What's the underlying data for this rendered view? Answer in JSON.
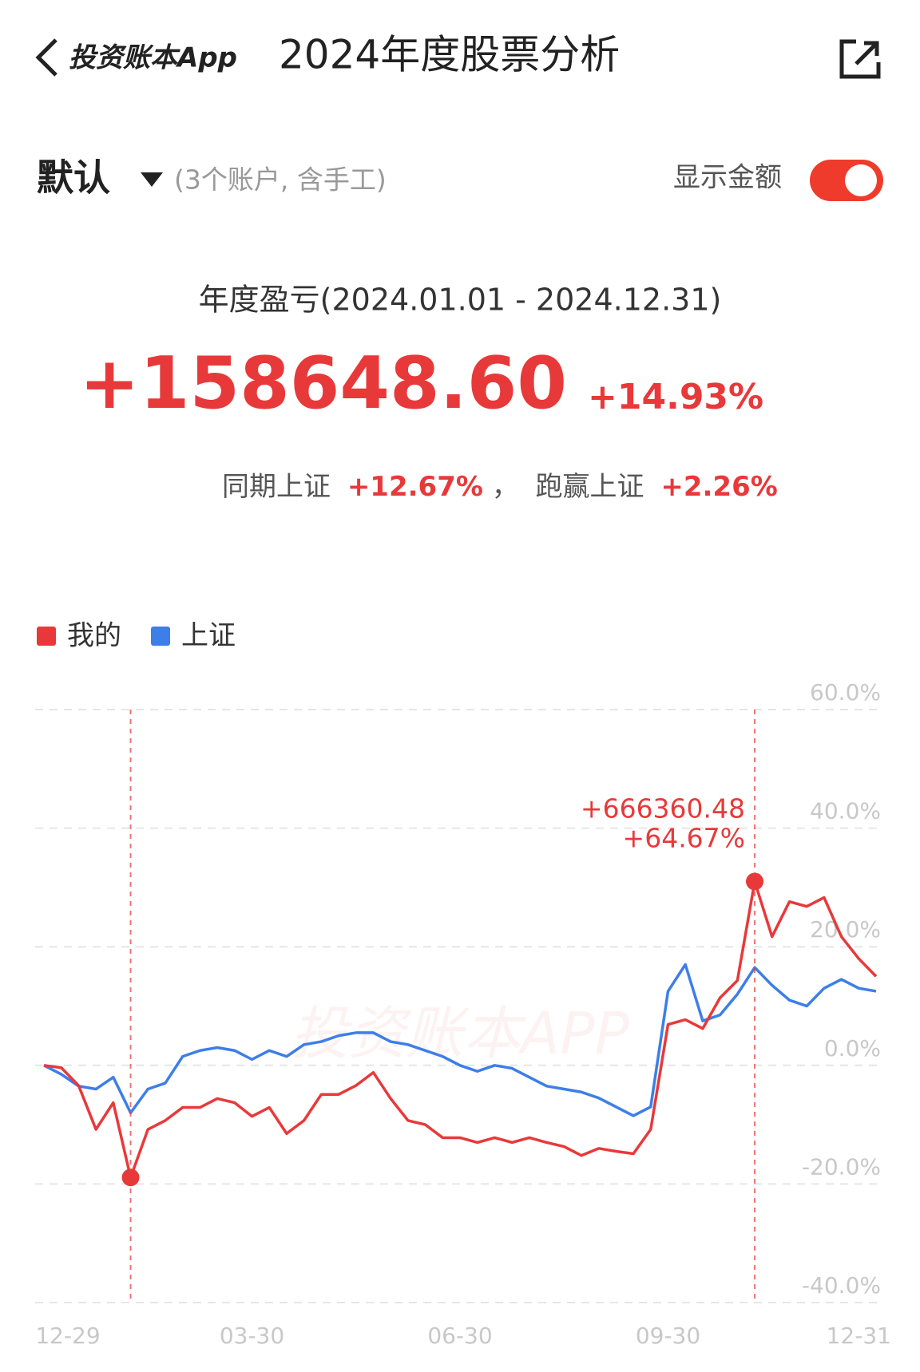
{
  "header": {
    "back_label": "投资账本App",
    "title": "2024年度股票分析"
  },
  "account": {
    "name": "默认",
    "detail": "(3个账户, 含手工)",
    "toggle_label": "显示金额"
  },
  "summary": {
    "period_label": "年度盈亏(2024.01.01 - 2024.12.31)",
    "amount": "+158648.60",
    "percent": "+14.93%",
    "compare_label": "同期上证",
    "compare_value": "+12.67%",
    "separator": "，",
    "beat_label": "跑赢上证",
    "beat_value": "+2.26%"
  },
  "chart_data": {
    "type": "line",
    "watermark": "投资账本APP",
    "categories": [
      "12-29",
      null,
      null,
      null,
      null,
      null,
      null,
      null,
      null,
      null,
      null,
      null,
      "03-30",
      null,
      null,
      null,
      null,
      null,
      null,
      null,
      null,
      null,
      null,
      null,
      "06-30",
      null,
      null,
      null,
      null,
      null,
      null,
      null,
      null,
      null,
      null,
      null,
      "09-30",
      null,
      null,
      null,
      null,
      null,
      null,
      null,
      null,
      null,
      null,
      "12-31",
      null
    ],
    "series": [
      {
        "name": "我的",
        "color": "#e8393a",
        "values": [
          0,
          -0.4,
          -3.4,
          -10.8,
          -6.3,
          -18.9,
          -10.8,
          -9.3,
          -7.1,
          -7.1,
          -5.6,
          -6.3,
          -8.6,
          -7.1,
          -11.5,
          -9.3,
          -4.9,
          -4.9,
          -3.4,
          -1.2,
          -5.6,
          -9.3,
          -10.0,
          -12.2,
          -12.2,
          -13.0,
          -12.2,
          -13.0,
          -12.2,
          -13.0,
          -13.7,
          -15.2,
          -14.0,
          -14.5,
          -14.9,
          -10.8,
          6.9,
          7.7,
          6.2,
          11.4,
          14.3,
          31.0,
          21.7,
          27.6,
          26.8,
          28.3,
          21.7,
          18.0,
          15.0
        ]
      },
      {
        "name": "上证",
        "color": "#3d7ee8",
        "values": [
          0,
          -1.5,
          -3.5,
          -4,
          -2,
          -8,
          -4,
          -3,
          1.5,
          2.5,
          3,
          2.5,
          1,
          2.5,
          1.5,
          3.5,
          4,
          5,
          5.5,
          5.5,
          4,
          3.5,
          2.5,
          1.5,
          0,
          -1,
          0,
          -0.5,
          -2,
          -3.5,
          -4,
          -4.5,
          -5.5,
          -7,
          -8.5,
          -7,
          12.5,
          17,
          7.5,
          8.5,
          12,
          16.5,
          13.5,
          11,
          10,
          13,
          14.5,
          13,
          12.5
        ]
      }
    ],
    "annotations": [
      "+666360.48",
      "+64.67%"
    ],
    "ylim": [
      -40,
      60
    ],
    "yticks": [
      {
        "value": -40,
        "label": "-40.0%"
      },
      {
        "value": -20,
        "label": "-20.0%"
      },
      {
        "value": 0,
        "label": "0.0%"
      },
      {
        "value": 20,
        "label": "20.0%"
      },
      {
        "value": 40,
        "label": "40.0%"
      },
      {
        "value": 60,
        "label": "60.0%"
      }
    ],
    "grid": true
  }
}
